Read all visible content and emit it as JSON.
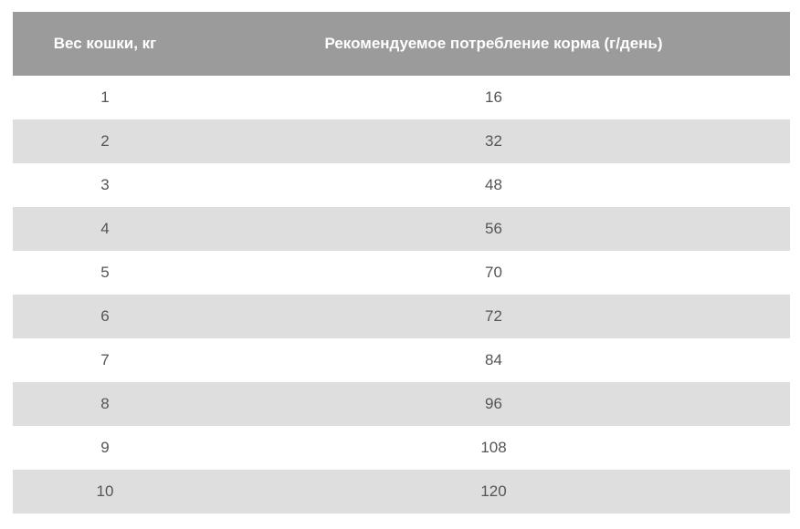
{
  "table": {
    "headers": [
      "Вес кошки, кг",
      "Рекомендуемое потребление корма (г/день)"
    ],
    "rows": [
      [
        "1",
        "16"
      ],
      [
        "2",
        "32"
      ],
      [
        "3",
        "48"
      ],
      [
        "4",
        "56"
      ],
      [
        "5",
        "70"
      ],
      [
        "6",
        "72"
      ],
      [
        "7",
        "84"
      ],
      [
        "8",
        "96"
      ],
      [
        "9",
        "108"
      ],
      [
        "10",
        "120"
      ]
    ]
  },
  "colors": {
    "header_bg": "#9b9b9b",
    "stripe_bg": "#dedede",
    "text": "#555555"
  }
}
